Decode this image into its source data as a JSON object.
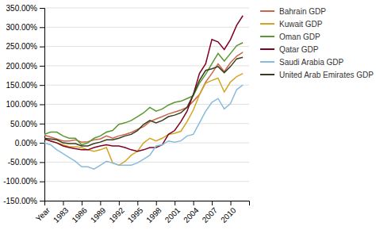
{
  "chart_data": {
    "type": "line",
    "x": [
      1980,
      1981,
      1982,
      1983,
      1984,
      1985,
      1986,
      1987,
      1988,
      1989,
      1990,
      1991,
      1992,
      1993,
      1994,
      1995,
      1996,
      1997,
      1998,
      1999,
      2000,
      2001,
      2002,
      2003,
      2004,
      2005,
      2006,
      2007,
      2008,
      2009,
      2010,
      2011,
      2012
    ],
    "series": [
      {
        "name": "Bahrain GDP",
        "color": "#C8674A",
        "values": [
          20,
          15,
          10,
          5,
          5,
          8,
          2,
          3,
          8,
          10,
          18,
          12,
          18,
          22,
          27,
          35,
          42,
          55,
          62,
          68,
          75,
          80,
          85,
          92,
          108,
          125,
          158,
          180,
          205,
          185,
          208,
          225,
          235
        ]
      },
      {
        "name": "Kuwait GDP",
        "color": "#D4A520",
        "values": [
          10,
          5,
          0,
          -5,
          -10,
          -10,
          -12,
          -18,
          -22,
          -18,
          -12,
          -52,
          -58,
          -48,
          -32,
          -22,
          0,
          12,
          5,
          12,
          22,
          25,
          30,
          55,
          85,
          125,
          155,
          162,
          168,
          132,
          158,
          172,
          180
        ]
      },
      {
        "name": "Oman GDP",
        "color": "#5A9832",
        "values": [
          22,
          28,
          28,
          18,
          12,
          12,
          -5,
          0,
          12,
          18,
          28,
          32,
          48,
          52,
          58,
          68,
          78,
          92,
          82,
          88,
          98,
          105,
          108,
          115,
          122,
          155,
          178,
          205,
          232,
          212,
          232,
          252,
          260
        ]
      },
      {
        "name": "Qatar GDP",
        "color": "#800020",
        "values": [
          10,
          5,
          0,
          -8,
          -12,
          -15,
          -18,
          -18,
          -12,
          -8,
          -5,
          -8,
          -8,
          -12,
          -18,
          -22,
          -18,
          -12,
          -12,
          -5,
          22,
          32,
          55,
          82,
          125,
          180,
          205,
          268,
          262,
          242,
          268,
          305,
          330
        ]
      },
      {
        "name": "Saudi Arabia GDP",
        "color": "#88BBDD",
        "values": [
          0,
          -5,
          -18,
          -28,
          -38,
          -48,
          -62,
          -62,
          -68,
          -58,
          -48,
          -52,
          -58,
          -58,
          -58,
          -52,
          -42,
          -32,
          -8,
          -5,
          5,
          2,
          5,
          18,
          22,
          52,
          82,
          105,
          115,
          88,
          102,
          138,
          150
        ]
      },
      {
        "name": "United Arab Emirates GDP",
        "color": "#3A3A20",
        "values": [
          12,
          10,
          8,
          0,
          -2,
          -2,
          -8,
          -8,
          -2,
          2,
          8,
          8,
          12,
          18,
          22,
          32,
          48,
          58,
          52,
          58,
          68,
          72,
          78,
          92,
          125,
          162,
          188,
          192,
          198,
          182,
          198,
          218,
          222
        ]
      }
    ],
    "xlim": [
      1980,
      2013
    ],
    "xticks": [
      {
        "value": 1980,
        "label": "Year"
      },
      1983,
      1986,
      1989,
      1992,
      1995,
      1998,
      2001,
      2004,
      2007,
      2010
    ],
    "ylim": [
      -150,
      350
    ],
    "yticks": [
      {
        "value": -150,
        "label": "-150.00%"
      },
      {
        "value": -100,
        "label": "-100.00%"
      },
      {
        "value": -50,
        "label": "-50.00%"
      },
      {
        "value": 0,
        "label": "0.00%"
      },
      {
        "value": 50,
        "label": "50.00%"
      },
      {
        "value": 100,
        "label": "100.00%"
      },
      {
        "value": 150,
        "label": "150.00%"
      },
      {
        "value": 200,
        "label": "200.00%"
      },
      {
        "value": 250,
        "label": "250.00%"
      },
      {
        "value": 300,
        "label": "300.00%"
      },
      {
        "value": 350,
        "label": "350.00%"
      }
    ],
    "grid": true,
    "legend": "right"
  }
}
